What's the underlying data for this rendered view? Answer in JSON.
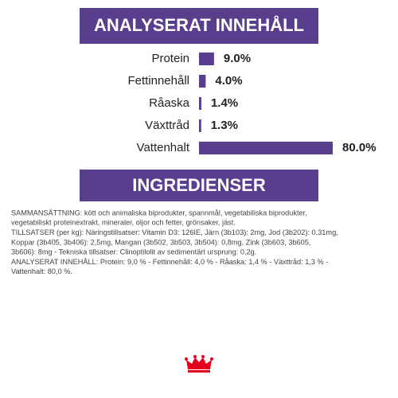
{
  "chart_data": {
    "type": "hbar",
    "title": "ANALYSERAT INNEHÅLL",
    "categories": [
      "Protein",
      "Fettinnehåll",
      "Råaska",
      "Växttråd",
      "Vattenhalt"
    ],
    "values": [
      9.0,
      4.0,
      1.4,
      1.3,
      80.0
    ],
    "value_labels": [
      "9.0%",
      "4.0%",
      "1.4%",
      "1.3%",
      "80.0%"
    ],
    "color": "#5a3e8e"
  },
  "ingredients": {
    "title": "INGREDIENSER",
    "lines": [
      "SAMMANSÄTTNING: kött och animaliska biprodukter, spannmål, vegetabiliska biprodukter,",
      "vegetabiliskt proteinextrakt, mineraler, oljor och fetter, grönsaker, jäst.",
      "TILLSATSER (per kg): Näringstillsatser: Vitamin D3: 126IE, Järn (3b103): 2mg, Jod (3b202): 0,31mg,",
      "Koppar (3b405, 3b406): 2,5mg, Mangan (3b502, 3b503, 3b504): 0,8mg, Zink (3b603, 3b605,",
      "3b606): 8mg - Tekniska tillsatser: Clinoptilolit av sedimentärt ursprung: 0,2g.",
      "ANALYSERAT INNEHÅLL: Protein: 9,0 % - Fettinnehåll: 4,0 % - Råaska: 1,4 % - Växttråd: 1,3 % -",
      "Vattenhalt: 80,0 %."
    ]
  }
}
